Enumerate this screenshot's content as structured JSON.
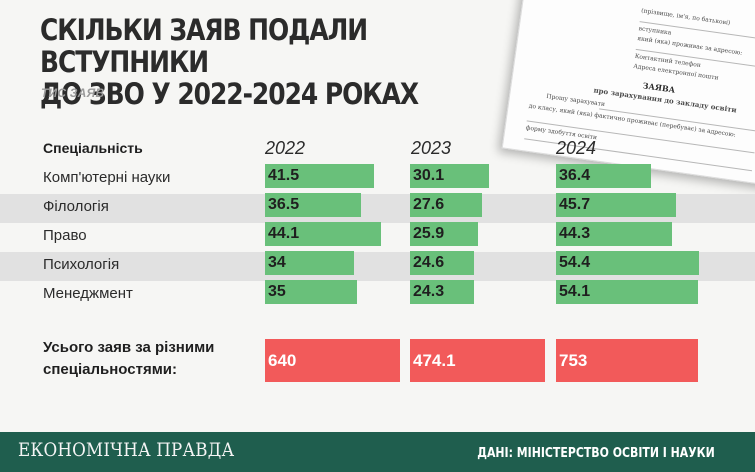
{
  "header": {
    "title_line1": "СКІЛЬКИ ЗАЯВ ПОДАЛИ ВСТУПНИКИ",
    "title_line2": "ДО ЗВО У 2022-2024 РОКАХ",
    "subtitle": "ТИС ЗАЯВ"
  },
  "document": {
    "lines": [
      "(прізвище, ім'я, по батькові)",
      "вступника",
      "який (яка) проживає за адресою:",
      "Контактний телефон",
      "Адреса електронної пошти"
    ],
    "heading": "ЗАЯВА",
    "subheading": "про зарахування до закладу освіти",
    "body": [
      "Прошу зарахувати",
      "до  класу, який (яка) фактично проживає (перебуває) за адресою:",
      "форму здобуття освіти"
    ]
  },
  "chart_data": {
    "type": "bar",
    "column_header": "Спеціальність",
    "years": [
      "2022",
      "2023",
      "2024"
    ],
    "categories": [
      "Комп'ютерні науки",
      "Філологія",
      "Право",
      "Психологія",
      "Менеджмент"
    ],
    "series": [
      {
        "name": "2022",
        "values": [
          41.5,
          36.5,
          44.1,
          34,
          35
        ]
      },
      {
        "name": "2023",
        "values": [
          30.1,
          27.6,
          25.9,
          24.6,
          24.3
        ]
      },
      {
        "name": "2024",
        "values": [
          36.4,
          45.7,
          44.3,
          54.4,
          54.1
        ]
      }
    ],
    "value_labels": [
      [
        "41.5",
        "36.5",
        "44.1",
        "34",
        "35"
      ],
      [
        "30.1",
        "27.6",
        "25.9",
        "24.6",
        "24.3"
      ],
      [
        "36.4",
        "45.7",
        "44.3",
        "54.4",
        "54.1"
      ]
    ],
    "totals_label": "Усього заяв за різними спеціальностями:",
    "totals": [
      640,
      474.1,
      753
    ],
    "totals_labels": [
      "640",
      "474.1",
      "753"
    ],
    "bar_color": "#69c07a",
    "total_color": "#f25a5a"
  },
  "footer": {
    "brand": "ЕКОНОМІЧНА ПРАВДА",
    "source": "ДАНІ: МІНІСТЕРСТВО ОСВІТИ І НАУКИ"
  }
}
